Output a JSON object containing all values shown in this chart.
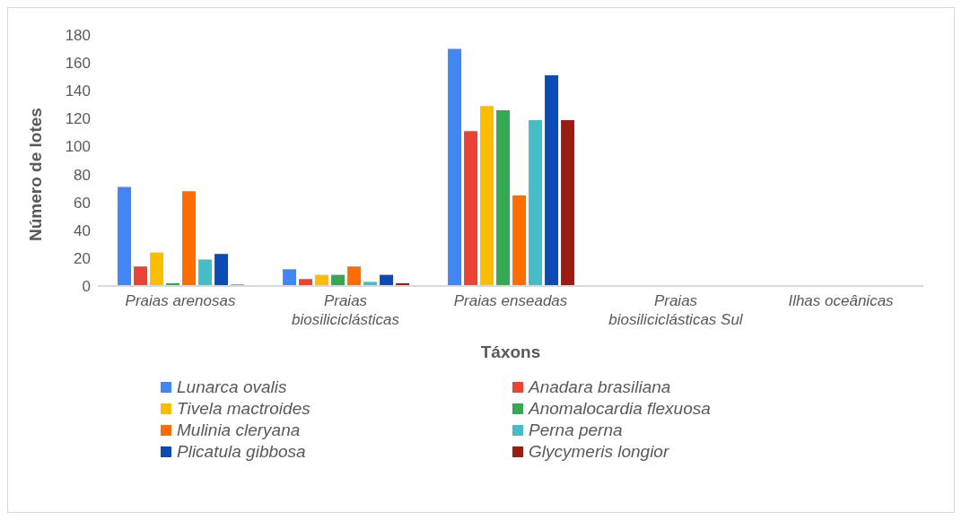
{
  "chart_data": {
    "type": "bar",
    "xlabel": "Táxons",
    "ylabel": "Número de lotes",
    "categories": [
      "Praias arenosas",
      "Praias biosiliciclásticas",
      "Praias enseadas",
      "Praias biosiliciclásticas Sul",
      "Ilhas oceânicas"
    ],
    "series": [
      {
        "name": "Lunarca ovalis",
        "color": "#4285f4",
        "values": [
          71,
          12,
          170,
          0,
          0
        ]
      },
      {
        "name": "Anadara brasiliana",
        "color": "#ea4335",
        "values": [
          14,
          5,
          111,
          0,
          0
        ]
      },
      {
        "name": "Tivela mactroides",
        "color": "#fbbc04",
        "values": [
          24,
          8,
          129,
          0,
          0
        ]
      },
      {
        "name": "Anomalocardia flexuosa",
        "color": "#34a853",
        "values": [
          2,
          8,
          126,
          0,
          0
        ]
      },
      {
        "name": "Mulinia cleryana",
        "color": "#ff6d01",
        "values": [
          68,
          14,
          65,
          0,
          0
        ]
      },
      {
        "name": "Perna perna",
        "color": "#46bdc6",
        "values": [
          19,
          3,
          119,
          0,
          0
        ]
      },
      {
        "name": "Plicatula gibbosa",
        "color": "#0b4bb3",
        "values": [
          23,
          8,
          151,
          0,
          0
        ]
      },
      {
        "name": "Glycymeris longior",
        "color": "#9a1c12",
        "values": [
          1,
          2,
          119,
          0,
          0
        ]
      }
    ],
    "ylim": [
      0,
      180
    ],
    "yticks": [
      0,
      20,
      40,
      60,
      80,
      100,
      120,
      140,
      160,
      180
    ],
    "grid": false,
    "legend": "bottom"
  }
}
